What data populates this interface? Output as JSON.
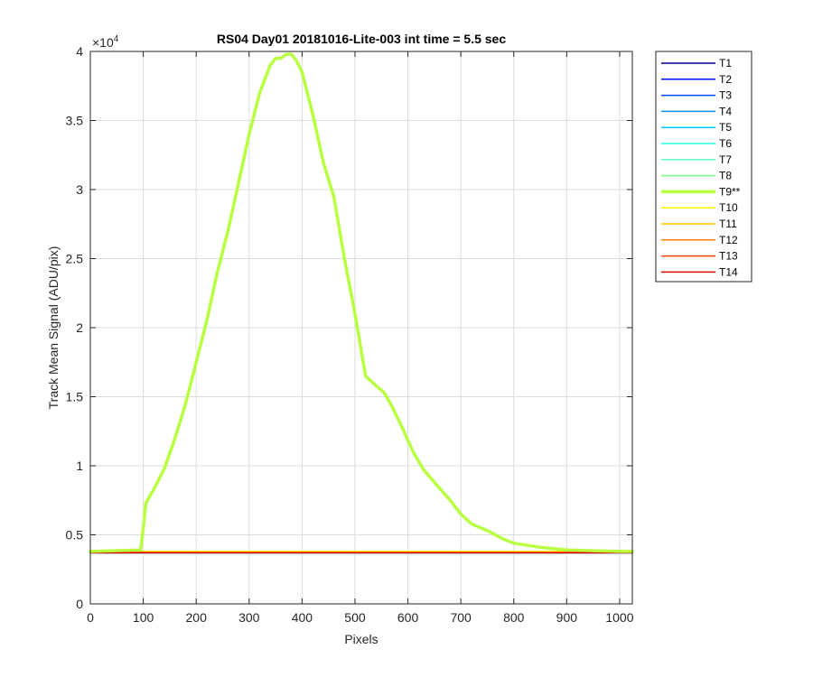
{
  "chart_data": {
    "type": "line",
    "title": "RS04 Day01 20181016-Lite-003 int time = 5.5 sec",
    "xlabel": "Pixels",
    "ylabel": "Track Mean Signal (ADU/pix)",
    "y_exponent_label": "×10",
    "y_exponent_power": "4",
    "y_scale": 10000,
    "xlim": [
      0,
      1024
    ],
    "ylim": [
      0,
      40000
    ],
    "xticks": [
      0,
      100,
      200,
      300,
      400,
      500,
      600,
      700,
      800,
      900,
      1000
    ],
    "yticks": [
      0,
      5000,
      10000,
      15000,
      20000,
      25000,
      30000,
      35000,
      40000
    ],
    "ytick_labels": [
      "0",
      "0.5",
      "1",
      "1.5",
      "2",
      "2.5",
      "3",
      "3.5",
      "4"
    ],
    "grid": true,
    "legend_position": "outside-right-top",
    "series": [
      {
        "name": "T1",
        "color": "#00008f",
        "width": 1.5,
        "x": [
          0,
          1024
        ],
        "y": [
          3700,
          3700
        ]
      },
      {
        "name": "T2",
        "color": "#0010ff",
        "width": 1.5,
        "x": [
          0,
          1024
        ],
        "y": [
          3700,
          3700
        ]
      },
      {
        "name": "T3",
        "color": "#0040ff",
        "width": 1.5,
        "x": [
          0,
          1024
        ],
        "y": [
          3700,
          3700
        ]
      },
      {
        "name": "T4",
        "color": "#0090ff",
        "width": 1.5,
        "x": [
          0,
          1024
        ],
        "y": [
          3700,
          3700
        ]
      },
      {
        "name": "T5",
        "color": "#00d0ff",
        "width": 1.5,
        "x": [
          0,
          1024
        ],
        "y": [
          3700,
          3700
        ]
      },
      {
        "name": "T6",
        "color": "#20ffe0",
        "width": 1.5,
        "x": [
          0,
          1024
        ],
        "y": [
          3700,
          3700
        ]
      },
      {
        "name": "T7",
        "color": "#60ffc0",
        "width": 1.5,
        "x": [
          0,
          1024
        ],
        "y": [
          3700,
          3700
        ]
      },
      {
        "name": "T8",
        "color": "#80ff80",
        "width": 1.5,
        "x": [
          0,
          1024
        ],
        "y": [
          3700,
          3700
        ]
      },
      {
        "name": "T10",
        "color": "#ffff00",
        "width": 1.5,
        "x": [
          0,
          1024
        ],
        "y": [
          3800,
          3800
        ]
      },
      {
        "name": "T11",
        "color": "#ffc000",
        "width": 1.5,
        "x": [
          0,
          1024
        ],
        "y": [
          3750,
          3750
        ]
      },
      {
        "name": "T12",
        "color": "#ff8000",
        "width": 1.5,
        "x": [
          0,
          1024
        ],
        "y": [
          3720,
          3720
        ]
      },
      {
        "name": "T13",
        "color": "#ff4000",
        "width": 1.5,
        "x": [
          0,
          1024
        ],
        "y": [
          3700,
          3700
        ]
      },
      {
        "name": "T14",
        "color": "#e00000",
        "width": 1.5,
        "x": [
          0,
          1024
        ],
        "y": [
          3700,
          3700
        ]
      },
      {
        "name": "T9**",
        "color": "#b8ff40",
        "width": 3.5,
        "x": [
          0,
          95,
          100,
          105,
          120,
          140,
          160,
          180,
          200,
          220,
          240,
          260,
          280,
          300,
          320,
          340,
          350,
          360,
          370,
          380,
          390,
          400,
          420,
          440,
          460,
          480,
          500,
          520,
          540,
          555,
          570,
          590,
          610,
          630,
          650,
          680,
          700,
          720,
          750,
          780,
          800,
          850,
          900,
          950,
          1000,
          1024
        ],
        "y": [
          3800,
          3900,
          5500,
          7300,
          8300,
          9800,
          12000,
          14500,
          17500,
          20500,
          24000,
          27000,
          30500,
          34000,
          37000,
          39000,
          39500,
          39500,
          39800,
          39800,
          39300,
          38500,
          35500,
          32000,
          29500,
          25000,
          21000,
          16500,
          15800,
          15300,
          14300,
          12700,
          11000,
          9700,
          8800,
          7500,
          6500,
          5800,
          5300,
          4700,
          4400,
          4100,
          3900,
          3850,
          3800,
          3800
        ]
      }
    ],
    "legend_entries": [
      "T1",
      "T2",
      "T3",
      "T4",
      "T5",
      "T6",
      "T7",
      "T8",
      "T9**",
      "T10",
      "T11",
      "T12",
      "T13",
      "T14"
    ]
  }
}
